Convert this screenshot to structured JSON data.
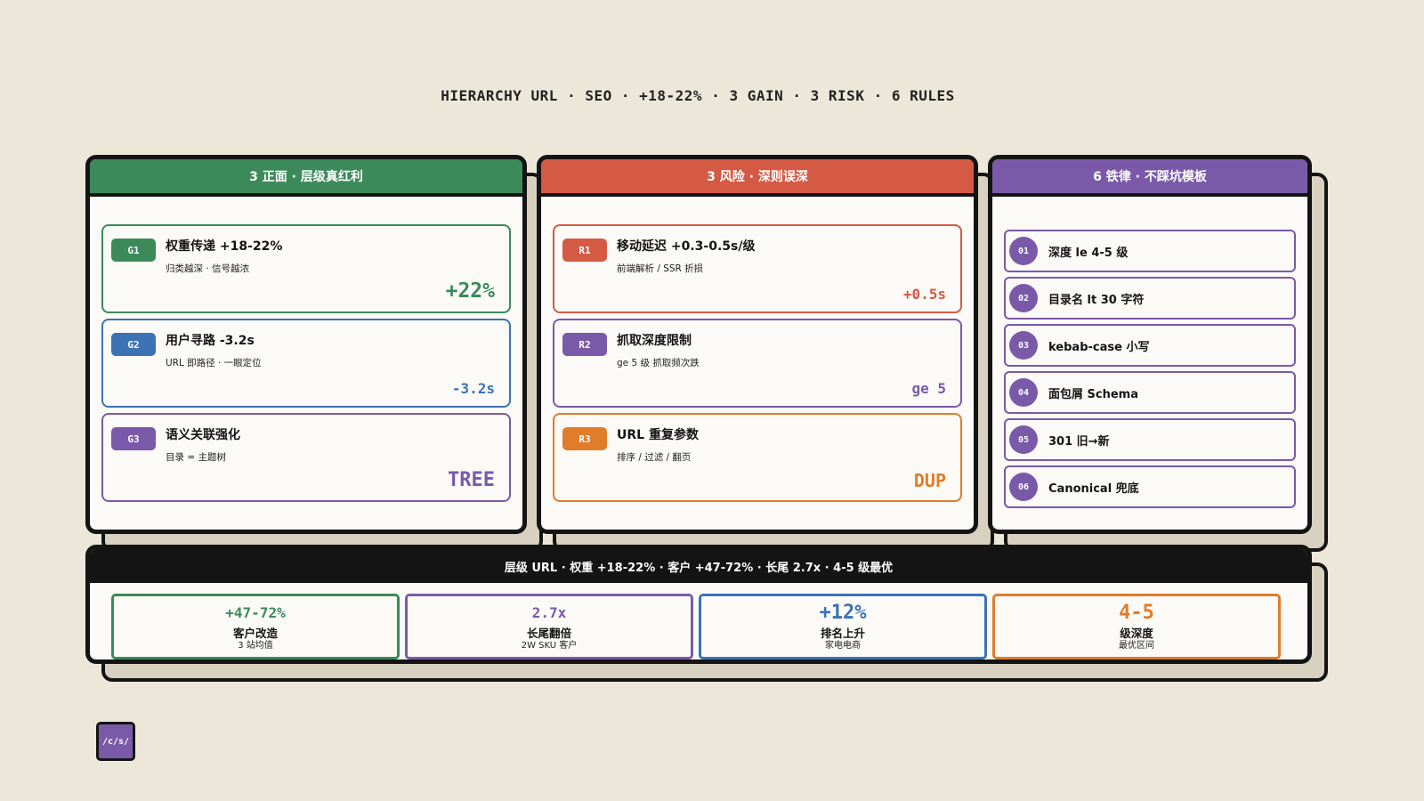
{
  "headline": "HIERARCHY URL · SEO · +18-22% · 3 GAIN · 3 RISK · 6 RULES",
  "colors": {
    "green": "#3c8a5a",
    "red": "#d45a44",
    "purple": "#7a5aa8",
    "blue": "#3b73b5",
    "orange": "#e07c2a",
    "dark": "#141414",
    "cream": "#ece7d9"
  },
  "gains": {
    "header": "3 正面 · 层级真红利",
    "items": [
      {
        "id": "G1",
        "title": "权重传递 +18-22%",
        "sub": "归类越深 · 信号越浓",
        "metric": "+22%"
      },
      {
        "id": "G2",
        "title": "用户寻路 -3.2s",
        "sub": "URL 即路径 · 一眼定位",
        "metric": "-3.2s"
      },
      {
        "id": "G3",
        "title": "语义关联强化",
        "sub": "目录 = 主题树",
        "metric": "TREE"
      }
    ]
  },
  "risks": {
    "header": "3 风险 · 深则误深",
    "items": [
      {
        "id": "R1",
        "title": "移动延迟 +0.3-0.5s/级",
        "sub": "前端解析 / SSR 折损",
        "metric": "+0.5s"
      },
      {
        "id": "R2",
        "title": "抓取深度限制",
        "sub": "ge 5 级 抓取频次跌",
        "metric": "ge 5"
      },
      {
        "id": "R3",
        "title": "URL 重复参数",
        "sub": "排序 / 过滤 / 翻页",
        "metric": "DUP"
      }
    ]
  },
  "rules": {
    "header": "6 铁律 · 不踩坑模板",
    "items": [
      {
        "num": "01",
        "text": "深度 le 4-5 级"
      },
      {
        "num": "02",
        "text": "目录名 lt 30 字符"
      },
      {
        "num": "03",
        "text": "kebab-case 小写"
      },
      {
        "num": "04",
        "text": "面包屑 Schema"
      },
      {
        "num": "05",
        "text": "301 旧→新"
      },
      {
        "num": "06",
        "text": "Canonical 兜底"
      }
    ]
  },
  "summary": {
    "header": "层级 URL · 权重 +18-22% · 客户 +47-72% · 长尾 2.7x · 4-5 级最优",
    "stats": [
      {
        "value": "+47-72%",
        "label": "客户改造",
        "sub": "3 站均值"
      },
      {
        "value": "2.7x",
        "label": "长尾翻倍",
        "sub": "2W SKU 客户"
      },
      {
        "value": "+12%",
        "label": "排名上升",
        "sub": "家电电商"
      },
      {
        "value": "4-5",
        "label": "级深度",
        "sub": "最优区间"
      }
    ]
  },
  "logo": "/c/s/"
}
